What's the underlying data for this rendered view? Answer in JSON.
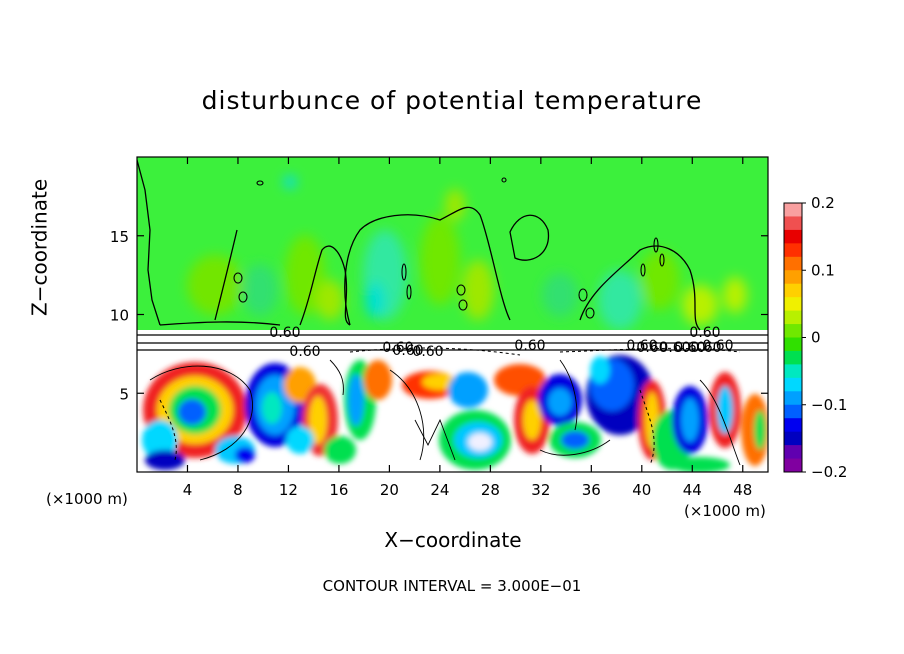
{
  "chart_data": {
    "type": "heatmap",
    "title": "disturbunce of potential temperature",
    "xlabel": "X−coordinate",
    "ylabel": "Z−coordinate",
    "x_unit": "(×1000 m)",
    "x_unit_right": "(×1000 m)",
    "xlim": [
      0,
      50
    ],
    "ylim": [
      0,
      20
    ],
    "x_ticks": [
      4,
      8,
      12,
      16,
      20,
      24,
      28,
      32,
      36,
      40,
      44,
      48
    ],
    "y_ticks": [
      5,
      10,
      15
    ],
    "colorbar": {
      "min": -0.2,
      "max": 0.2,
      "ticks": [
        "0.2",
        "0.1",
        "0",
        "−0.1",
        "−0.2"
      ],
      "tick_values": [
        0.2,
        0.1,
        0,
        -0.1,
        -0.2
      ],
      "colors": [
        "#f9a0a0",
        "#f05050",
        "#e80000",
        "#ff3000",
        "#ff7000",
        "#ffa000",
        "#ffd000",
        "#f0f000",
        "#b8f000",
        "#70e800",
        "#30e000",
        "#00e050",
        "#00e8c0",
        "#00d8ff",
        "#00a0ff",
        "#0060ff",
        "#0000f0",
        "#0000c0",
        "#6000b0",
        "#8000a0"
      ]
    },
    "contour_labels": [
      "0.60",
      "0.60",
      "0.60",
      "0.60",
      "0.60",
      "0.60",
      "0.60",
      "0.60",
      "0.60",
      "0.60",
      "0.60",
      "0.60",
      "0.60"
    ],
    "contour_interval": "CONTOUR INTERVAL = 3.000E−01"
  },
  "colors": {
    "background_upper": "#3cf03c",
    "neutral_band": "#ffffff",
    "frame": "#000000"
  }
}
